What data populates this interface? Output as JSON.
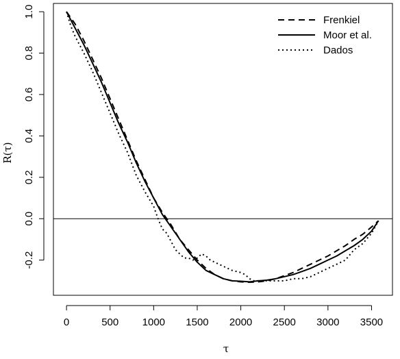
{
  "chart_data": {
    "type": "line",
    "title": "",
    "xlabel": "τ",
    "ylabel": "R(τ)",
    "xlim": [
      -150,
      3740
    ],
    "ylim": [
      -0.37,
      1.04
    ],
    "x_ticks": [
      {
        "value": 0,
        "label": "0"
      },
      {
        "value": 500,
        "label": "500"
      },
      {
        "value": 1000,
        "label": "1000"
      },
      {
        "value": 1500,
        "label": "1500"
      },
      {
        "value": 2000,
        "label": "2000"
      },
      {
        "value": 2500,
        "label": "2500"
      },
      {
        "value": 3000,
        "label": "3000"
      },
      {
        "value": 3500,
        "label": "3500"
      }
    ],
    "y_ticks": [
      {
        "value": -0.2,
        "label": "-0.2"
      },
      {
        "value": 0.0,
        "label": "0.0"
      },
      {
        "value": 0.2,
        "label": "0.2"
      },
      {
        "value": 0.4,
        "label": "0.4"
      },
      {
        "value": 0.6,
        "label": "0.6"
      },
      {
        "value": 0.8,
        "label": "0.8"
      },
      {
        "value": 1.0,
        "label": "1.0"
      }
    ],
    "reference_line_y": 0,
    "legend_position": "top-right",
    "series": [
      {
        "name": "Frenkiel",
        "style": "dashed",
        "x": [
          0,
          100,
          200,
          300,
          400,
          500,
          600,
          700,
          800,
          900,
          1000,
          1100,
          1200,
          1300,
          1400,
          1500,
          1600,
          1700,
          1800,
          1900,
          2000,
          2100,
          2200,
          2300,
          2400,
          2500,
          2600,
          2700,
          2800,
          2900,
          3000,
          3100,
          3200,
          3300,
          3400,
          3500,
          3580
        ],
        "y": [
          1.0,
          0.94,
          0.86,
          0.77,
          0.68,
          0.58,
          0.48,
          0.38,
          0.28,
          0.19,
          0.1,
          0.03,
          -0.03,
          -0.1,
          -0.15,
          -0.2,
          -0.24,
          -0.27,
          -0.29,
          -0.3,
          -0.305,
          -0.307,
          -0.305,
          -0.3,
          -0.29,
          -0.275,
          -0.26,
          -0.24,
          -0.22,
          -0.2,
          -0.18,
          -0.155,
          -0.13,
          -0.1,
          -0.075,
          -0.04,
          -0.01
        ]
      },
      {
        "name": "Moor et al.",
        "style": "solid",
        "x": [
          0,
          100,
          200,
          300,
          400,
          500,
          600,
          700,
          800,
          900,
          1000,
          1100,
          1200,
          1300,
          1400,
          1500,
          1600,
          1700,
          1800,
          1900,
          2000,
          2100,
          2200,
          2300,
          2400,
          2500,
          2600,
          2700,
          2800,
          2900,
          3000,
          3100,
          3200,
          3300,
          3400,
          3500,
          3580
        ],
        "y": [
          1.0,
          0.92,
          0.84,
          0.75,
          0.66,
          0.56,
          0.46,
          0.37,
          0.27,
          0.18,
          0.1,
          0.02,
          -0.04,
          -0.1,
          -0.16,
          -0.21,
          -0.25,
          -0.27,
          -0.29,
          -0.3,
          -0.302,
          -0.305,
          -0.3,
          -0.297,
          -0.29,
          -0.28,
          -0.27,
          -0.255,
          -0.24,
          -0.22,
          -0.2,
          -0.18,
          -0.155,
          -0.13,
          -0.1,
          -0.06,
          -0.01
        ]
      },
      {
        "name": "Dados",
        "style": "dotted",
        "x": [
          0,
          50,
          100,
          200,
          300,
          400,
          500,
          600,
          700,
          800,
          900,
          1000,
          1050,
          1100,
          1150,
          1200,
          1250,
          1300,
          1350,
          1400,
          1450,
          1500,
          1550,
          1600,
          1650,
          1700,
          1800,
          1900,
          2000,
          2050,
          2100,
          2150,
          2200,
          2300,
          2400,
          2500,
          2600,
          2700,
          2800,
          2900,
          3000,
          3100,
          3200,
          3300,
          3400,
          3500,
          3580
        ],
        "y": [
          1.0,
          0.93,
          0.88,
          0.8,
          0.71,
          0.61,
          0.51,
          0.41,
          0.32,
          0.21,
          0.13,
          0.06,
          0.0,
          -0.05,
          -0.07,
          -0.11,
          -0.15,
          -0.17,
          -0.19,
          -0.19,
          -0.2,
          -0.19,
          -0.17,
          -0.18,
          -0.2,
          -0.21,
          -0.23,
          -0.25,
          -0.26,
          -0.27,
          -0.29,
          -0.3,
          -0.3,
          -0.3,
          -0.3,
          -0.3,
          -0.29,
          -0.29,
          -0.28,
          -0.26,
          -0.24,
          -0.22,
          -0.2,
          -0.15,
          -0.12,
          -0.07,
          -0.01
        ]
      }
    ]
  }
}
